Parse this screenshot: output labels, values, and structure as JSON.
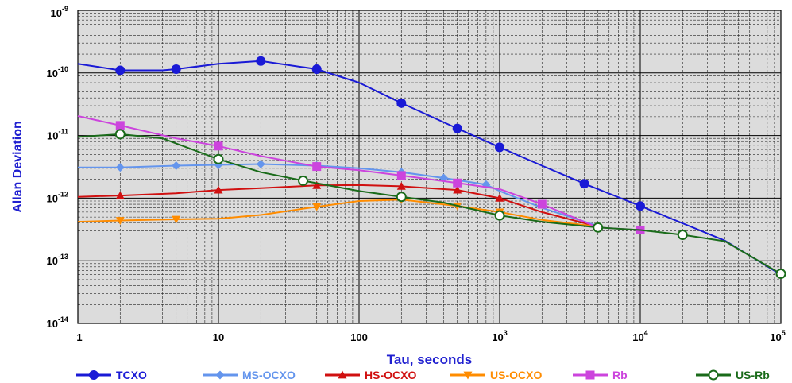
{
  "chart_data": {
    "type": "line",
    "title": "",
    "xlabel": "Tau, seconds",
    "ylabel": "Allan Deviation",
    "xscale": "log",
    "yscale": "log",
    "xlim": [
      1,
      100000
    ],
    "ylim": [
      1e-14,
      1e-09
    ],
    "grid": true,
    "legend_position": "bottom",
    "x_ticks": [
      {
        "value": 1,
        "base": "1",
        "exp": ""
      },
      {
        "value": 10,
        "base": "10",
        "exp": ""
      },
      {
        "value": 100,
        "base": "100",
        "exp": ""
      },
      {
        "value": 1000,
        "base": "10",
        "exp": "3"
      },
      {
        "value": 10000,
        "base": "10",
        "exp": "4"
      },
      {
        "value": 100000,
        "base": "10",
        "exp": "5"
      }
    ],
    "y_ticks": [
      {
        "value": 1e-09,
        "base": "10",
        "exp": "-9"
      },
      {
        "value": 1e-10,
        "base": "10",
        "exp": "-10"
      },
      {
        "value": 1e-11,
        "base": "10",
        "exp": "-11"
      },
      {
        "value": 1e-12,
        "base": "10",
        "exp": "-12"
      },
      {
        "value": 1e-13,
        "base": "10",
        "exp": "-13"
      },
      {
        "value": 1e-14,
        "base": "10",
        "exp": "-14"
      }
    ],
    "series": [
      {
        "name": "TCXO",
        "color": "#1a1ad6",
        "marker": "circle",
        "x": [
          1,
          2,
          4,
          5,
          10,
          20,
          50,
          100,
          200,
          500,
          1000,
          2000,
          4000,
          10000,
          40000,
          100000
        ],
        "y": [
          1.4e-10,
          1.1e-10,
          1.1e-10,
          1.15e-10,
          1.4e-10,
          1.55e-10,
          1.15e-10,
          7e-11,
          3.3e-11,
          1.3e-11,
          6.5e-12,
          3.3e-12,
          1.7e-12,
          7.5e-13,
          2.1e-13,
          6e-14
        ],
        "markers": [
          2,
          5,
          20,
          50,
          200,
          500,
          1000,
          4000,
          10000
        ]
      },
      {
        "name": "MS-OCXO",
        "color": "#6495ed",
        "marker": "diamond",
        "x": [
          1,
          2,
          5,
          10,
          20,
          50,
          100,
          200,
          400,
          800,
          1000,
          2000,
          5000
        ],
        "y": [
          3.1e-12,
          3.1e-12,
          3.3e-12,
          3.4e-12,
          3.5e-12,
          3.3e-12,
          3e-12,
          2.6e-12,
          2.1e-12,
          1.65e-12,
          1.3e-12,
          7e-13,
          3.6e-13
        ],
        "markers": [
          2,
          5,
          10,
          20,
          50,
          200,
          400,
          800
        ]
      },
      {
        "name": "HS-OCXO",
        "color": "#d01010",
        "marker": "triangle-up",
        "x": [
          1,
          2,
          5,
          10,
          20,
          50,
          100,
          200,
          500,
          1000,
          2000,
          5000
        ],
        "y": [
          1.05e-12,
          1.1e-12,
          1.2e-12,
          1.35e-12,
          1.45e-12,
          1.6e-12,
          1.62e-12,
          1.55e-12,
          1.35e-12,
          1e-12,
          6e-13,
          3.5e-13
        ],
        "markers": [
          2,
          10,
          50,
          200,
          500,
          1000
        ]
      },
      {
        "name": "US-OCXO",
        "color": "#ff8c00",
        "marker": "triangle-down",
        "x": [
          1,
          2,
          5,
          10,
          20,
          50,
          100,
          200,
          500,
          1000,
          2000,
          5000
        ],
        "y": [
          4.2e-13,
          4.4e-13,
          4.6e-13,
          4.7e-13,
          5.4e-13,
          7.3e-13,
          9e-13,
          9.5e-13,
          7.5e-13,
          6e-13,
          4.5e-13,
          3.5e-13
        ],
        "markers": [
          2,
          5,
          50,
          200,
          500,
          1000
        ]
      },
      {
        "name": "Rb",
        "color": "#cc44dd",
        "marker": "square",
        "x": [
          1,
          2,
          5,
          10,
          20,
          50,
          100,
          200,
          500,
          1000,
          2000,
          5000,
          10000
        ],
        "y": [
          2.05e-11,
          1.45e-11,
          9e-12,
          6.8e-12,
          4.7e-12,
          3.2e-12,
          2.8e-12,
          2.3e-12,
          1.75e-12,
          1.4e-12,
          8e-13,
          3.4e-13,
          3.1e-13
        ],
        "markers": [
          2,
          10,
          50,
          200,
          500,
          2000,
          10000,
          40000
        ]
      },
      {
        "name": "US-Rb",
        "color": "#1a6b1a",
        "marker": "circle-open",
        "x": [
          1,
          2,
          4,
          10,
          20,
          40,
          100,
          200,
          400,
          1000,
          2000,
          5000,
          10000,
          20000,
          40000,
          100000
        ],
        "y": [
          9.5e-12,
          1.05e-11,
          9e-12,
          4.2e-12,
          2.6e-12,
          1.9e-12,
          1.3e-12,
          1.05e-12,
          8.5e-13,
          5.3e-13,
          4.2e-13,
          3.4e-13,
          3.1e-13,
          2.6e-13,
          2.05e-13,
          6.2e-14
        ],
        "markers": [
          2,
          10,
          40,
          200,
          1000,
          5000,
          20000,
          100000
        ]
      }
    ]
  }
}
